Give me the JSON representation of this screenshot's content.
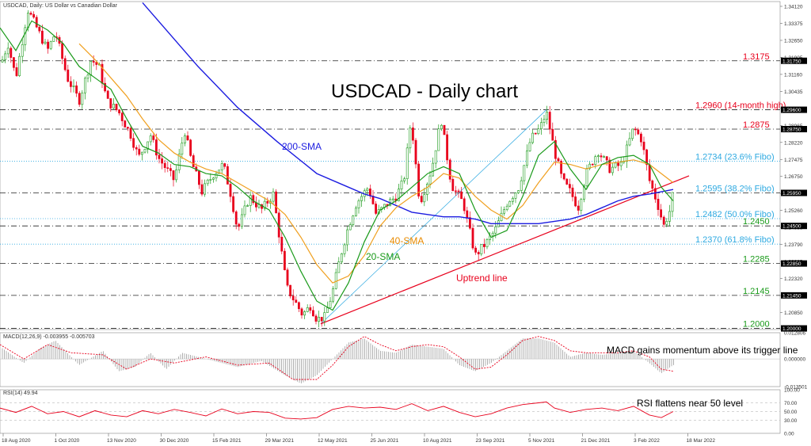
{
  "chart_data": {
    "type": "line",
    "header": "USDCAD, Daily:  US Dollar vs Canadian Dollar",
    "title": "USDCAD - Daily chart",
    "x_ticks": [
      "18 Aug 2020",
      "1 Oct 2020",
      "13 Nov 2020",
      "30 Dec 2020",
      "15 Feb 2021",
      "29 Mar 2021",
      "12 May 2021",
      "25 Jun 2021",
      "10 Aug 2021",
      "23 Sep 2021",
      "5 Nov 2021",
      "21 Dec 2021",
      "3 Feb 2022",
      "18 Mar 2022"
    ],
    "price_ylim": [
      1.1995,
      1.3435
    ],
    "price_y_ticks": [
      "1.34120",
      "1.33375",
      "1.32650",
      "1.31905",
      "1.31160",
      "1.30435",
      "1.29690",
      "1.28965",
      "1.28220",
      "1.27475",
      "1.26750",
      "1.26005",
      "1.25260",
      "1.24535",
      "1.23790",
      "1.23065",
      "1.22320",
      "1.21575",
      "1.20850",
      "1.20105"
    ],
    "price_boxed_ticks": [
      "1.31750",
      "1.29600",
      "1.28750",
      "1.25950",
      "1.24500",
      "1.22850",
      "1.21450",
      "1.20000"
    ],
    "price_series": {
      "close_points": [
        [
          0,
          1.315
        ],
        [
          10,
          1.325
        ],
        [
          20,
          1.31
        ],
        [
          35,
          1.34
        ],
        [
          45,
          1.333
        ],
        [
          60,
          1.322
        ],
        [
          70,
          1.33
        ],
        [
          85,
          1.31
        ],
        [
          100,
          1.3
        ],
        [
          115,
          1.318
        ],
        [
          125,
          1.315
        ],
        [
          135,
          1.3
        ],
        [
          150,
          1.295
        ],
        [
          165,
          1.285
        ],
        [
          175,
          1.275
        ],
        [
          190,
          1.285
        ],
        [
          200,
          1.275
        ],
        [
          210,
          1.27
        ],
        [
          220,
          1.265
        ],
        [
          233,
          1.287
        ],
        [
          242,
          1.273
        ],
        [
          255,
          1.26
        ],
        [
          270,
          1.268
        ],
        [
          282,
          1.272
        ],
        [
          292,
          1.258
        ],
        [
          300,
          1.243
        ],
        [
          315,
          1.258
        ],
        [
          330,
          1.252
        ],
        [
          345,
          1.259
        ],
        [
          352,
          1.242
        ],
        [
          362,
          1.218
        ],
        [
          372,
          1.212
        ],
        [
          382,
          1.206
        ],
        [
          392,
          1.21
        ],
        [
          400,
          1.204
        ],
        [
          410,
          1.205
        ],
        [
          420,
          1.216
        ],
        [
          430,
          1.232
        ],
        [
          440,
          1.245
        ],
        [
          450,
          1.255
        ],
        [
          465,
          1.262
        ],
        [
          475,
          1.25
        ],
        [
          490,
          1.255
        ],
        [
          500,
          1.258
        ],
        [
          510,
          1.265
        ],
        [
          519,
          1.292
        ],
        [
          530,
          1.255
        ],
        [
          545,
          1.27
        ],
        [
          557,
          1.292
        ],
        [
          570,
          1.263
        ],
        [
          585,
          1.255
        ],
        [
          600,
          1.232
        ],
        [
          615,
          1.238
        ],
        [
          625,
          1.243
        ],
        [
          640,
          1.255
        ],
        [
          655,
          1.262
        ],
        [
          670,
          1.283
        ],
        [
          682,
          1.288
        ],
        [
          690,
          1.295
        ],
        [
          700,
          1.278
        ],
        [
          710,
          1.265
        ],
        [
          720,
          1.26
        ],
        [
          730,
          1.253
        ],
        [
          740,
          1.268
        ],
        [
          755,
          1.278
        ],
        [
          770,
          1.27
        ],
        [
          785,
          1.272
        ],
        [
          800,
          1.288
        ],
        [
          810,
          1.283
        ],
        [
          820,
          1.265
        ],
        [
          830,
          1.255
        ],
        [
          838,
          1.245
        ],
        [
          846,
          1.252
        ],
        [
          850,
          1.26
        ]
      ],
      "sma20_points": [
        [
          0,
          1.332
        ],
        [
          20,
          1.322
        ],
        [
          40,
          1.335
        ],
        [
          60,
          1.331
        ],
        [
          80,
          1.325
        ],
        [
          100,
          1.315
        ],
        [
          120,
          1.31
        ],
        [
          140,
          1.305
        ],
        [
          160,
          1.292
        ],
        [
          180,
          1.28
        ],
        [
          200,
          1.277
        ],
        [
          220,
          1.272
        ],
        [
          240,
          1.271
        ],
        [
          260,
          1.268
        ],
        [
          280,
          1.267
        ],
        [
          300,
          1.262
        ],
        [
          320,
          1.256
        ],
        [
          340,
          1.252
        ],
        [
          360,
          1.24
        ],
        [
          380,
          1.225
        ],
        [
          400,
          1.212
        ],
        [
          420,
          1.208
        ],
        [
          440,
          1.22
        ],
        [
          460,
          1.238
        ],
        [
          480,
          1.252
        ],
        [
          500,
          1.256
        ],
        [
          520,
          1.262
        ],
        [
          540,
          1.268
        ],
        [
          560,
          1.271
        ],
        [
          580,
          1.268
        ],
        [
          600,
          1.252
        ],
        [
          620,
          1.24
        ],
        [
          640,
          1.243
        ],
        [
          660,
          1.258
        ],
        [
          680,
          1.276
        ],
        [
          700,
          1.282
        ],
        [
          720,
          1.27
        ],
        [
          740,
          1.261
        ],
        [
          760,
          1.272
        ],
        [
          780,
          1.275
        ],
        [
          800,
          1.276
        ],
        [
          820,
          1.272
        ],
        [
          835,
          1.262
        ],
        [
          850,
          1.256
        ]
      ],
      "sma40_points": [
        [
          100,
          1.325
        ],
        [
          120,
          1.318
        ],
        [
          140,
          1.31
        ],
        [
          160,
          1.302
        ],
        [
          180,
          1.292
        ],
        [
          200,
          1.283
        ],
        [
          220,
          1.277
        ],
        [
          240,
          1.273
        ],
        [
          260,
          1.27
        ],
        [
          280,
          1.268
        ],
        [
          300,
          1.264
        ],
        [
          320,
          1.26
        ],
        [
          340,
          1.256
        ],
        [
          360,
          1.25
        ],
        [
          380,
          1.24
        ],
        [
          400,
          1.228
        ],
        [
          420,
          1.22
        ],
        [
          440,
          1.223
        ],
        [
          460,
          1.232
        ],
        [
          480,
          1.245
        ],
        [
          500,
          1.253
        ],
        [
          520,
          1.258
        ],
        [
          540,
          1.262
        ],
        [
          560,
          1.268
        ],
        [
          580,
          1.266
        ],
        [
          600,
          1.258
        ],
        [
          620,
          1.252
        ],
        [
          640,
          1.248
        ],
        [
          660,
          1.254
        ],
        [
          680,
          1.264
        ],
        [
          700,
          1.273
        ],
        [
          720,
          1.272
        ],
        [
          740,
          1.27
        ],
        [
          760,
          1.272
        ],
        [
          780,
          1.273
        ],
        [
          800,
          1.274
        ],
        [
          820,
          1.272
        ],
        [
          835,
          1.268
        ],
        [
          850,
          1.264
        ]
      ],
      "sma200_points": [
        [
          180,
          1.343
        ],
        [
          200,
          1.335
        ],
        [
          250,
          1.315
        ],
        [
          300,
          1.297
        ],
        [
          350,
          1.282
        ],
        [
          400,
          1.268
        ],
        [
          440,
          1.262
        ],
        [
          460,
          1.259
        ],
        [
          480,
          1.257
        ],
        [
          500,
          1.254
        ],
        [
          520,
          1.251
        ],
        [
          540,
          1.25
        ],
        [
          560,
          1.249
        ],
        [
          580,
          1.249
        ],
        [
          600,
          1.248
        ],
        [
          620,
          1.246
        ],
        [
          640,
          1.246
        ],
        [
          660,
          1.246
        ],
        [
          680,
          1.246
        ],
        [
          700,
          1.247
        ],
        [
          720,
          1.248
        ],
        [
          740,
          1.25
        ],
        [
          760,
          1.253
        ],
        [
          780,
          1.256
        ],
        [
          800,
          1.258
        ],
        [
          820,
          1.259
        ],
        [
          835,
          1.26
        ],
        [
          850,
          1.261
        ]
      ],
      "uptrend_line": [
        [
          405,
          1.202
        ],
        [
          870,
          1.267
        ]
      ],
      "channel_line": [
        [
          405,
          1.202
        ],
        [
          690,
          1.296
        ]
      ]
    },
    "levels": [
      {
        "value": 1.3175,
        "label": "1.3175",
        "color": "#e8001c",
        "style": "dashdot"
      },
      {
        "value": 1.296,
        "label": "1.2960 (14-month high)",
        "color": "#e8001c",
        "style": "dashdot"
      },
      {
        "value": 1.2875,
        "label": "1.2875",
        "color": "#e8001c",
        "style": "dashdot"
      },
      {
        "value": 1.2734,
        "label": "1.2734 (23.6% Fibo)",
        "color": "#2da9e1",
        "style": "dotted"
      },
      {
        "value": 1.2595,
        "label": "1.2595 (38.2% Fibo)",
        "color": "#2da9e1",
        "style": "dashdot"
      },
      {
        "value": 1.2482,
        "label": "1.2482 (50.0% Fibo)",
        "color": "#2da9e1",
        "style": "dotted"
      },
      {
        "value": 1.245,
        "label": "1.2450",
        "color": "#1a9a1a",
        "style": "dashdot"
      },
      {
        "value": 1.237,
        "label": "1.2370 (61.8% Fibo)",
        "color": "#2da9e1",
        "style": "dotted"
      },
      {
        "value": 1.2285,
        "label": "1.2285",
        "color": "#1a9a1a",
        "style": "dashdot"
      },
      {
        "value": 1.2145,
        "label": "1.2145",
        "color": "#1a9a1a",
        "style": "dashdot"
      },
      {
        "value": 1.2,
        "label": "1.2000",
        "color": "#1a9a1a",
        "style": "dashdot"
      }
    ],
    "annotations": {
      "sma200": "200-SMA",
      "sma40": "40-SMA",
      "sma20": "20-SMA",
      "uptrend": "Uptrend line"
    },
    "macd": {
      "header": "MACD(12,26,9) -0.003955 -0.005703",
      "y_ticks": [
        "0.012806",
        "0.000000",
        "-0.013501"
      ],
      "annotation": "MACD gains momentum above its trigger line",
      "hist_points": [
        [
          0,
          0.006
        ],
        [
          30,
          -0.002
        ],
        [
          50,
          0.005
        ],
        [
          70,
          0.009
        ],
        [
          100,
          -0.003
        ],
        [
          130,
          0.004
        ],
        [
          150,
          -0.006
        ],
        [
          170,
          -0.004
        ],
        [
          190,
          0.003
        ],
        [
          210,
          -0.005
        ],
        [
          230,
          0.003
        ],
        [
          260,
          0.0
        ],
        [
          300,
          -0.004
        ],
        [
          330,
          -0.001
        ],
        [
          360,
          -0.008
        ],
        [
          380,
          -0.012
        ],
        [
          400,
          -0.008
        ],
        [
          420,
          0.0
        ],
        [
          440,
          0.008
        ],
        [
          460,
          0.01
        ],
        [
          480,
          0.004
        ],
        [
          500,
          0.003
        ],
        [
          520,
          0.007
        ],
        [
          540,
          0.006
        ],
        [
          560,
          0.005
        ],
        [
          580,
          -0.003
        ],
        [
          600,
          -0.006
        ],
        [
          620,
          -0.002
        ],
        [
          640,
          0.004
        ],
        [
          660,
          0.01
        ],
        [
          680,
          0.01
        ],
        [
          700,
          0.008
        ],
        [
          720,
          0.001
        ],
        [
          740,
          0.003
        ],
        [
          760,
          0.002
        ],
        [
          780,
          0.003
        ],
        [
          800,
          0.004
        ],
        [
          820,
          -0.002
        ],
        [
          835,
          -0.007
        ],
        [
          850,
          -0.003
        ]
      ],
      "signal_points": [
        [
          0,
          0.007
        ],
        [
          30,
          0.0
        ],
        [
          60,
          0.007
        ],
        [
          90,
          0.003
        ],
        [
          130,
          0.002
        ],
        [
          160,
          -0.005
        ],
        [
          190,
          0.0
        ],
        [
          220,
          -0.002
        ],
        [
          260,
          0.001
        ],
        [
          300,
          -0.003
        ],
        [
          340,
          -0.002
        ],
        [
          370,
          -0.01
        ],
        [
          400,
          -0.01
        ],
        [
          420,
          -0.003
        ],
        [
          440,
          0.006
        ],
        [
          460,
          0.011
        ],
        [
          480,
          0.007
        ],
        [
          500,
          0.004
        ],
        [
          520,
          0.006
        ],
        [
          540,
          0.007
        ],
        [
          560,
          0.006
        ],
        [
          580,
          0.001
        ],
        [
          600,
          -0.005
        ],
        [
          620,
          -0.004
        ],
        [
          640,
          0.002
        ],
        [
          660,
          0.009
        ],
        [
          680,
          0.011
        ],
        [
          700,
          0.009
        ],
        [
          720,
          0.004
        ],
        [
          740,
          0.003
        ],
        [
          760,
          0.003
        ],
        [
          780,
          0.003
        ],
        [
          800,
          0.004
        ],
        [
          820,
          0.001
        ],
        [
          835,
          -0.005
        ],
        [
          850,
          -0.006
        ]
      ]
    },
    "rsi": {
      "header": "RSI(14) 49.94",
      "y_ticks": [
        "100.00",
        "70.00",
        "50.00",
        "30.00",
        "0.00"
      ],
      "annotation": "RSI flattens near 50 level",
      "points": [
        [
          0,
          58
        ],
        [
          20,
          48
        ],
        [
          40,
          62
        ],
        [
          60,
          45
        ],
        [
          80,
          50
        ],
        [
          100,
          38
        ],
        [
          120,
          52
        ],
        [
          140,
          42
        ],
        [
          160,
          38
        ],
        [
          180,
          52
        ],
        [
          200,
          45
        ],
        [
          220,
          55
        ],
        [
          240,
          48
        ],
        [
          260,
          40
        ],
        [
          280,
          56
        ],
        [
          300,
          45
        ],
        [
          320,
          50
        ],
        [
          340,
          48
        ],
        [
          360,
          35
        ],
        [
          380,
          33
        ],
        [
          400,
          36
        ],
        [
          420,
          55
        ],
        [
          440,
          62
        ],
        [
          460,
          58
        ],
        [
          480,
          60
        ],
        [
          500,
          55
        ],
        [
          520,
          68
        ],
        [
          540,
          52
        ],
        [
          560,
          62
        ],
        [
          580,
          48
        ],
        [
          600,
          38
        ],
        [
          620,
          45
        ],
        [
          640,
          58
        ],
        [
          660,
          66
        ],
        [
          680,
          70
        ],
        [
          690,
          72
        ],
        [
          700,
          58
        ],
        [
          720,
          48
        ],
        [
          740,
          55
        ],
        [
          760,
          58
        ],
        [
          780,
          52
        ],
        [
          800,
          62
        ],
        [
          820,
          42
        ],
        [
          835,
          36
        ],
        [
          850,
          50
        ]
      ]
    }
  }
}
